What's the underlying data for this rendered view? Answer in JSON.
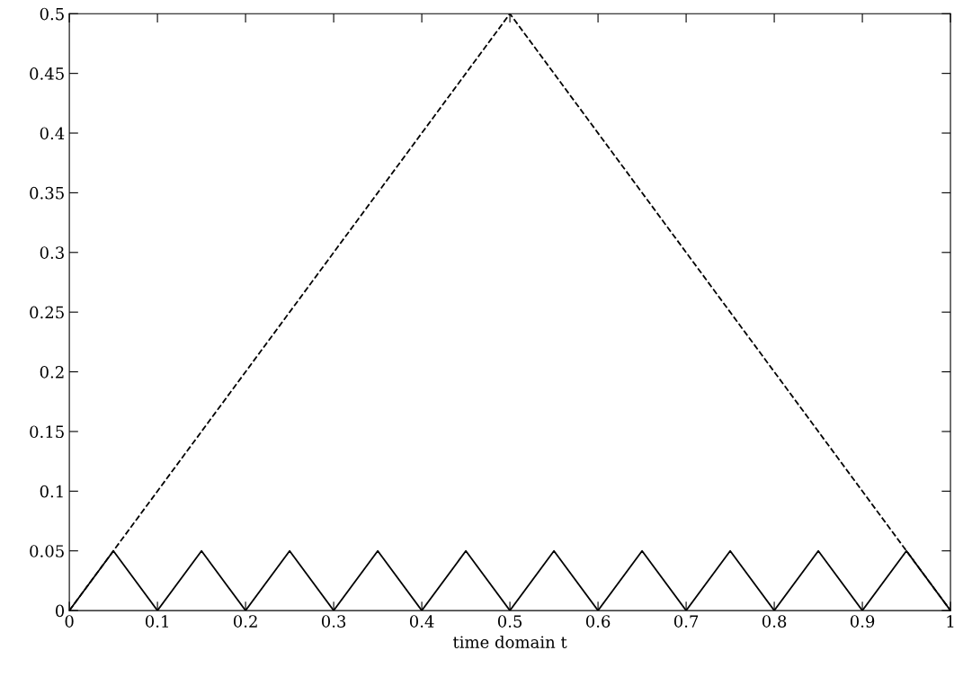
{
  "chart_data": {
    "type": "line",
    "xlabel": "time domain t",
    "series": [
      {
        "color": "#000000",
        "line_style": "dashed",
        "x": [
          0,
          0.5,
          1
        ],
        "values": [
          0,
          0.5,
          0
        ]
      },
      {
        "color": "#000000",
        "line_style": "solid",
        "x": [
          0,
          0.05,
          0.1,
          0.15,
          0.2,
          0.25,
          0.3,
          0.35,
          0.4,
          0.45,
          0.5,
          0.55,
          0.6,
          0.65,
          0.7,
          0.75,
          0.8,
          0.85,
          0.9,
          0.95,
          1
        ],
        "values": [
          0,
          0.05,
          0,
          0.05,
          0,
          0.05,
          0,
          0.05,
          0,
          0.05,
          0,
          0.05,
          0,
          0.05,
          0,
          0.05,
          0,
          0.05,
          0,
          0.05,
          0
        ]
      }
    ],
    "xlim": [
      0,
      1
    ],
    "ylim": [
      0,
      0.5
    ],
    "xticks": [
      0,
      0.1,
      0.2,
      0.3,
      0.4,
      0.5,
      0.6,
      0.7,
      0.8,
      0.9,
      1
    ],
    "yticks": [
      0,
      0.05,
      0.1,
      0.15,
      0.2,
      0.25,
      0.3,
      0.35,
      0.4,
      0.45,
      0.5
    ],
    "grid": false,
    "legend": false
  }
}
